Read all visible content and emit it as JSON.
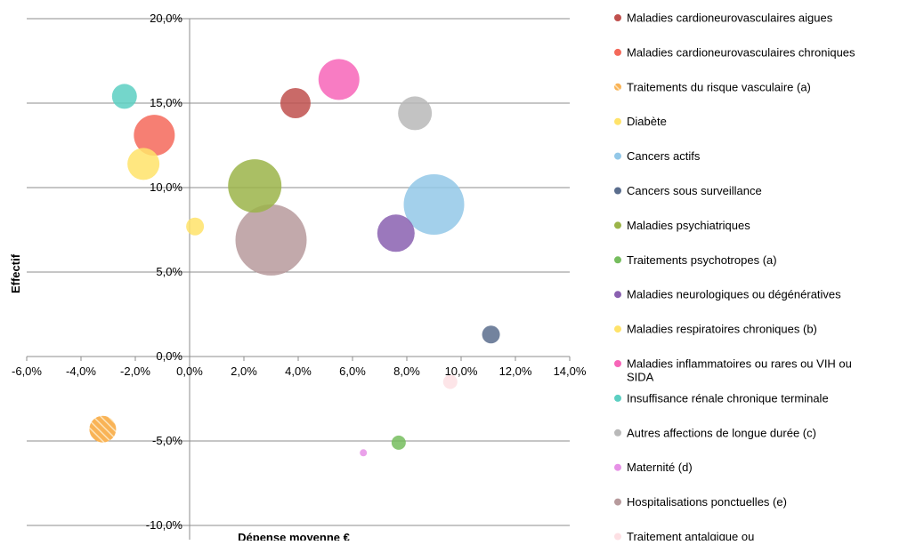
{
  "chart_data": {
    "type": "scatter",
    "xlabel": "Dépense moyenne €",
    "ylabel": "Effectif",
    "xlim": [
      -0.06,
      0.14
    ],
    "ylim": [
      -0.1,
      0.2
    ],
    "x_ticks": [
      {
        "value": -0.06,
        "label": "-6,0%"
      },
      {
        "value": -0.04,
        "label": "-4,0%"
      },
      {
        "value": -0.02,
        "label": "-2,0%"
      },
      {
        "value": 0.0,
        "label": "0,0%"
      },
      {
        "value": 0.02,
        "label": "2,0%"
      },
      {
        "value": 0.04,
        "label": "4,0%"
      },
      {
        "value": 0.06,
        "label": "6,0%"
      },
      {
        "value": 0.08,
        "label": "8,0%"
      },
      {
        "value": 0.1,
        "label": "10,0%"
      },
      {
        "value": 0.12,
        "label": "12,0%"
      },
      {
        "value": 0.14,
        "label": "14,0%"
      }
    ],
    "y_ticks": [
      {
        "value": 0.2,
        "label": "20,0%"
      },
      {
        "value": 0.15,
        "label": "15,0%"
      },
      {
        "value": 0.1,
        "label": "10,0%"
      },
      {
        "value": 0.05,
        "label": "5,0%"
      },
      {
        "value": 0.0,
        "label": "0,0%"
      },
      {
        "value": -0.05,
        "label": "-5,0%"
      },
      {
        "value": -0.1,
        "label": "-10,0%"
      }
    ],
    "grid": "horizontal",
    "legend_position": "right",
    "series": [
      {
        "name": "Maladies cardioneurovasculaires aigues",
        "color": "#c0504d",
        "hatched": false,
        "points": [
          {
            "x": 0.039,
            "y": 0.15,
            "r": 17
          }
        ]
      },
      {
        "name": "Maladies cardioneurovasculaires chroniques",
        "color": "#f4695a",
        "hatched": false,
        "points": [
          {
            "x": -0.013,
            "y": 0.131,
            "r": 23
          }
        ]
      },
      {
        "name": "Traitements du risque vasculaire (a)",
        "color": "#f9b356",
        "hatched": true,
        "points": [
          {
            "x": -0.032,
            "y": -0.043,
            "r": 15
          }
        ]
      },
      {
        "name": "Diabète",
        "color": "#ffe36a",
        "hatched": false,
        "points": [
          {
            "x": -0.017,
            "y": 0.114,
            "r": 18
          },
          {
            "x": 0.002,
            "y": 0.077,
            "r": 10
          }
        ]
      },
      {
        "name": "Cancers actifs",
        "color": "#93c8e8",
        "hatched": false,
        "points": [
          {
            "x": 0.09,
            "y": 0.09,
            "r": 34
          }
        ]
      },
      {
        "name": "Cancers sous surveillance",
        "color": "#5a6d8d",
        "hatched": false,
        "points": [
          {
            "x": 0.111,
            "y": 0.013,
            "r": 10
          }
        ]
      },
      {
        "name": "Maladies psychiatriques",
        "color": "#9bb449",
        "hatched": false,
        "points": [
          {
            "x": 0.024,
            "y": 0.101,
            "r": 30
          }
        ]
      },
      {
        "name": "Traitements psychotropes (a)",
        "color": "#76bd5e",
        "hatched": false,
        "points": [
          {
            "x": 0.077,
            "y": -0.051,
            "r": 8
          }
        ]
      },
      {
        "name": "Maladies neurologiques ou dégénératives",
        "color": "#8a60b0",
        "hatched": false,
        "points": [
          {
            "x": 0.076,
            "y": 0.073,
            "r": 21
          }
        ]
      },
      {
        "name": "Maladies respiratoires chroniques (b)",
        "color": "#ffe36a",
        "hatched": false,
        "points": []
      },
      {
        "name": "Maladies inflammatoires ou rares ou VIH ou SIDA",
        "color": "#f765b8",
        "hatched": false,
        "points": [
          {
            "x": 0.055,
            "y": 0.164,
            "r": 23
          }
        ]
      },
      {
        "name": "Insuffisance rénale chronique terminale",
        "color": "#5ccfc2",
        "hatched": false,
        "points": [
          {
            "x": -0.024,
            "y": 0.154,
            "r": 14
          }
        ]
      },
      {
        "name": "Autres affections de longue durée (c)",
        "color": "#b9b9b9",
        "hatched": false,
        "points": [
          {
            "x": 0.083,
            "y": 0.144,
            "r": 19
          }
        ]
      },
      {
        "name": "Maternité (d)",
        "color": "#e691e6",
        "hatched": false,
        "points": [
          {
            "x": 0.064,
            "y": -0.057,
            "r": 4
          }
        ]
      },
      {
        "name": "Hospitalisations ponctuelles (e)",
        "color": "#b79a9c",
        "hatched": false,
        "points": [
          {
            "x": 0.03,
            "y": 0.069,
            "r": 40
          }
        ]
      },
      {
        "name": "Traitement antalgique ou anti-inflammatoire (f)",
        "color": "#fde0e4",
        "hatched": false,
        "points": [
          {
            "x": 0.096,
            "y": -0.015,
            "r": 8
          }
        ]
      }
    ]
  }
}
